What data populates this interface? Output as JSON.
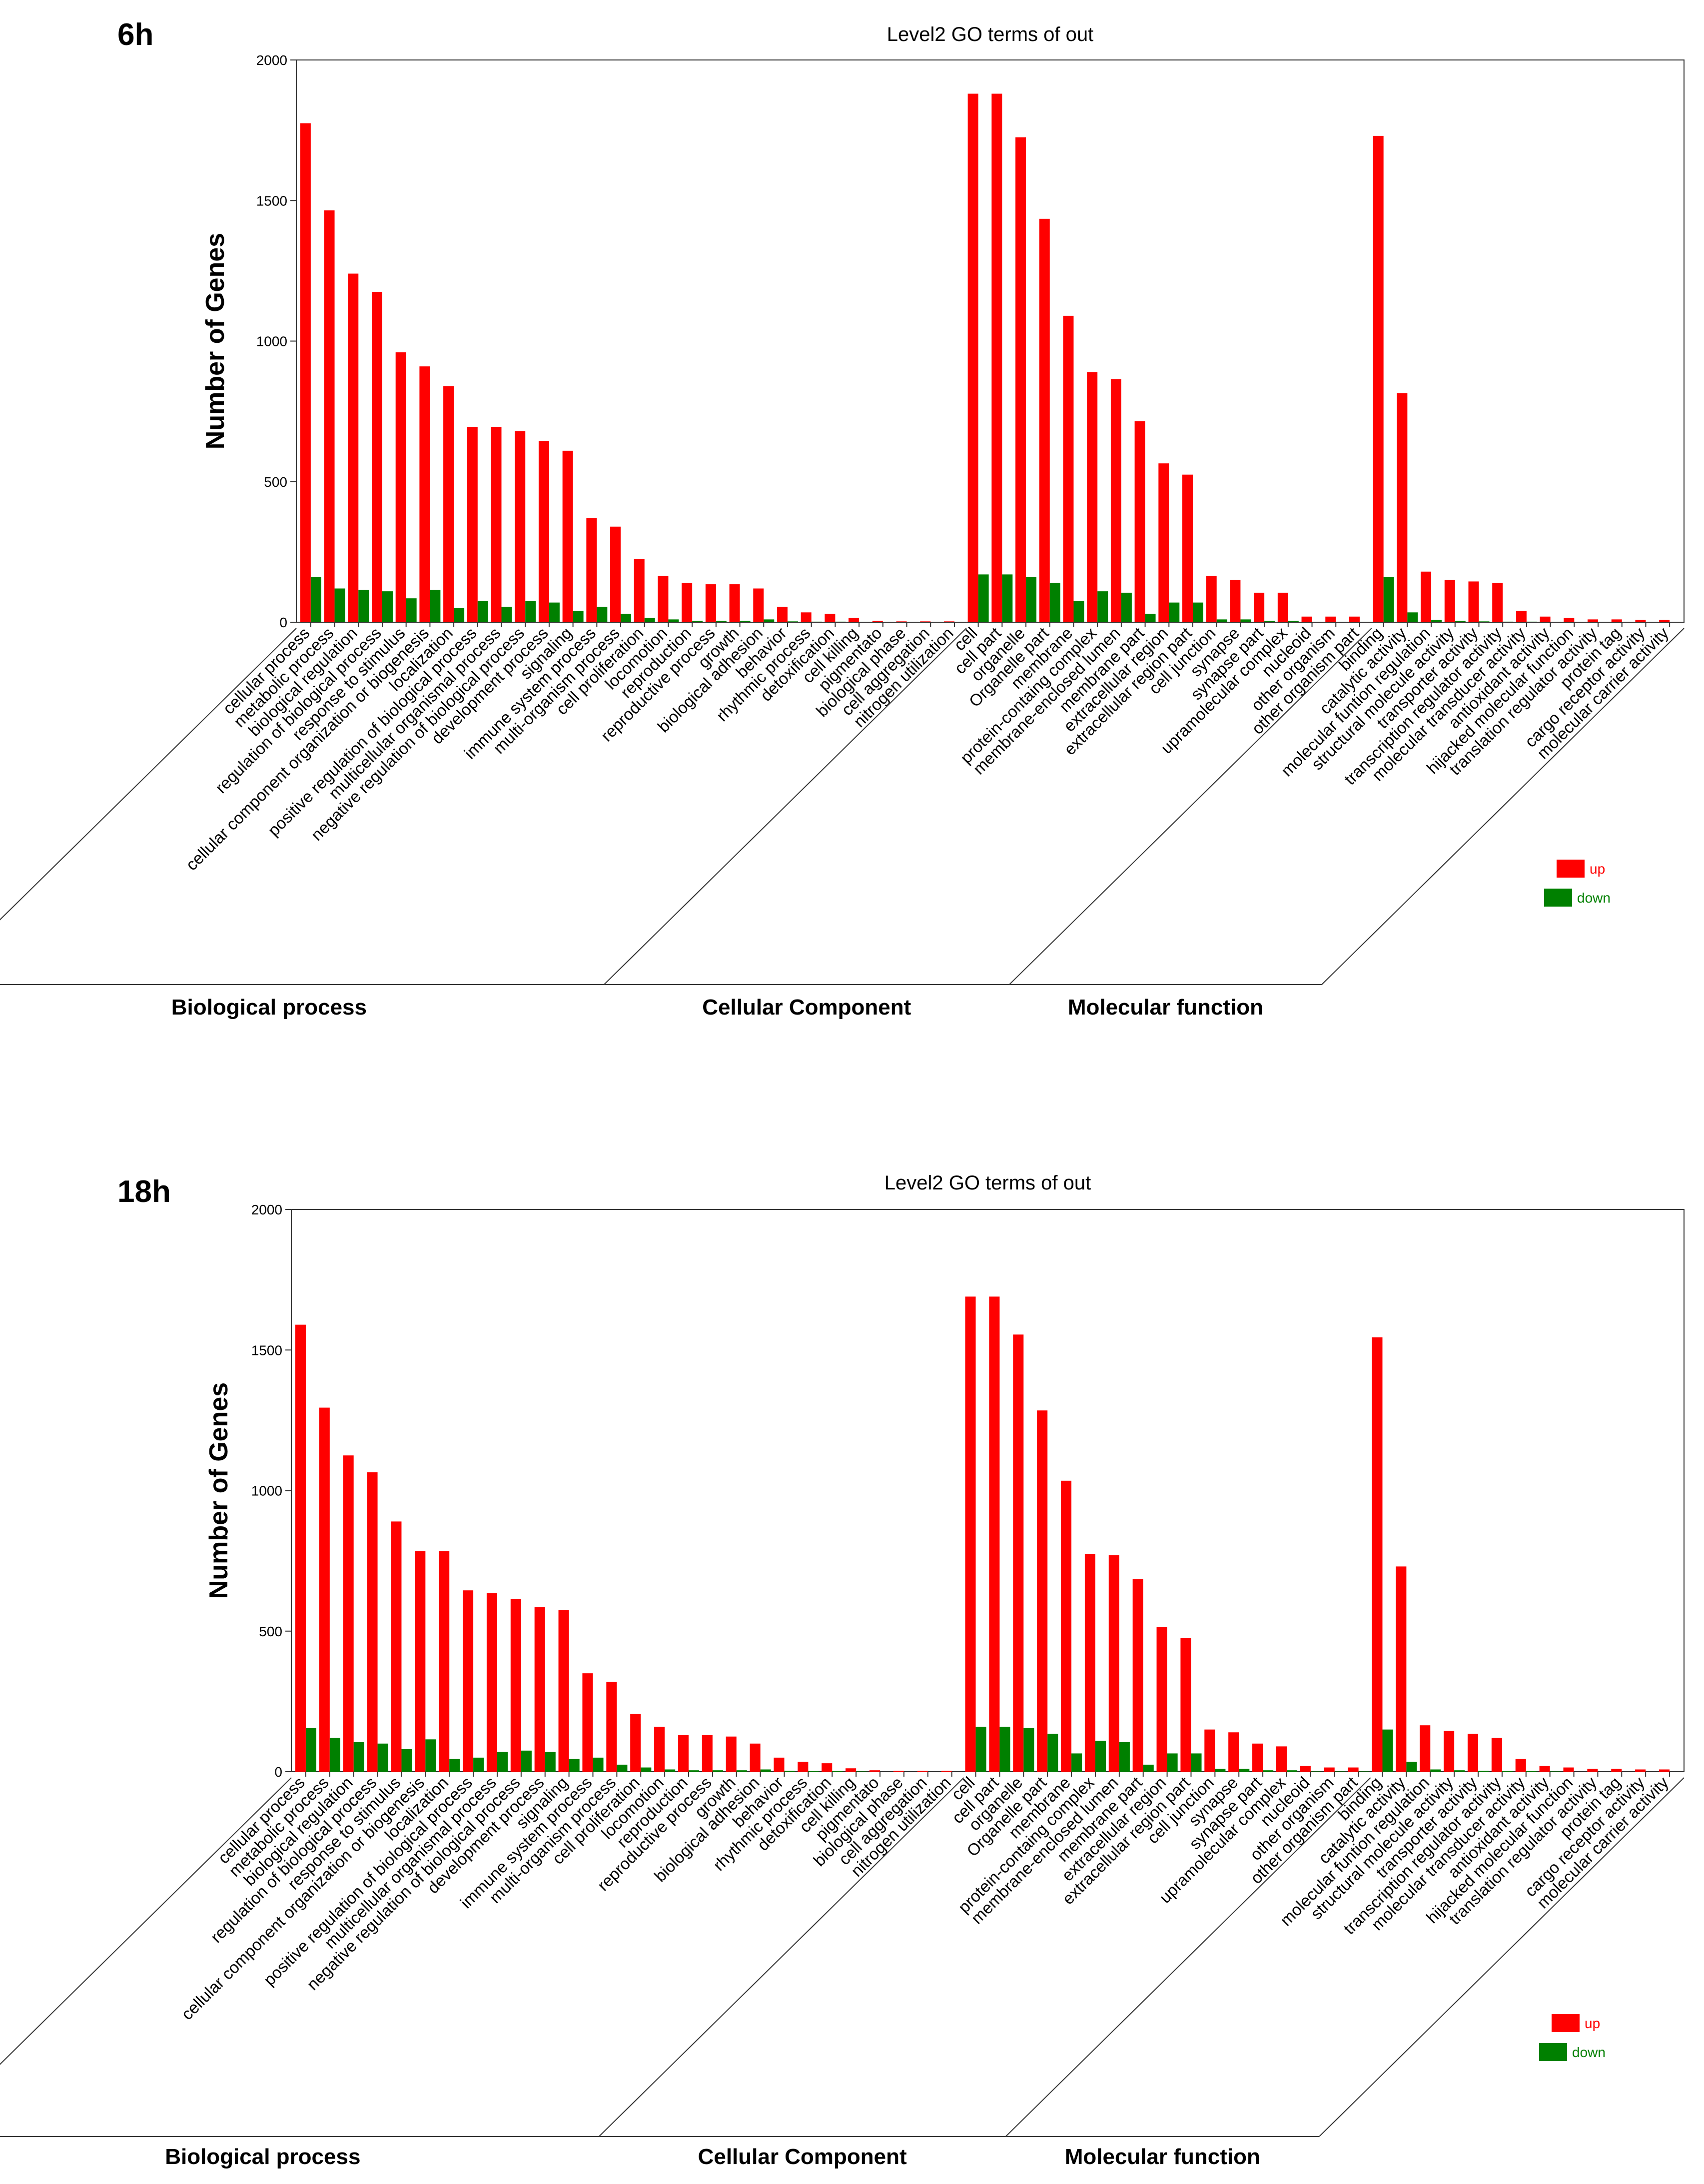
{
  "legend": {
    "up_label": "up",
    "down_label": "down"
  },
  "colors": {
    "up": "#ff0000",
    "down": "#008000",
    "axis": "#333333"
  },
  "chart_data": [
    {
      "type": "bar",
      "panel_label": "6h",
      "title": "Level2 GO terms of out",
      "ylabel": "Number of Genes",
      "xlabel": "",
      "ylim": [
        0,
        2000
      ],
      "yticks": [
        0,
        500,
        1000,
        1500,
        2000
      ],
      "categories": [
        "cellular process",
        "metabolic process",
        "biological regulation",
        "regulation of biological process",
        "response to stimulus",
        "cellular component organization or biogenesis",
        "localization",
        "positive regulation of biological process",
        "multicellular organismal process",
        "negative regulation of biological process",
        "development  process",
        "signaling",
        "immune system process",
        "multi-organism process",
        "cell proliferation",
        "locomotion",
        "reproduction",
        "reproductive process",
        "growth",
        "biological adhesion",
        "behavior",
        "rhythmic process",
        "detoxification",
        "cell killing",
        "pigmentato",
        "biological phase",
        "cell aggregation",
        "nitrogen utilization",
        "cell",
        "cell part",
        "organelle",
        "Organelle part",
        "membrane",
        "protein-containg complex",
        "membrane-enclosed lumen",
        "membrane part",
        "extracellular region",
        "extracellular region part",
        "cell junction",
        "synapse",
        "synapse part",
        "upramolecular complex",
        "nucleoid",
        "other organism",
        "other organism part",
        "binding",
        "catalytic activity",
        "molecular funtion regulation",
        "structural molecule activity",
        "transporter activity",
        "transcription regulator activity",
        "molecular transducer activity",
        "antioxidant activity",
        "hijacked molecular function",
        "translation regulator activity",
        "protein tag",
        "cargo receptor activity",
        "molecular carrier activity"
      ],
      "groups": [
        {
          "name": "Biological process",
          "count": 28
        },
        {
          "name": "Cellular Component",
          "count": 17
        },
        {
          "name": "Molecular function",
          "count": 13
        }
      ],
      "series": [
        {
          "name": "up",
          "values": [
            1775,
            1465,
            1240,
            1175,
            960,
            910,
            840,
            695,
            695,
            680,
            645,
            610,
            370,
            340,
            225,
            165,
            140,
            135,
            135,
            120,
            55,
            35,
            30,
            15,
            5,
            3,
            3,
            3,
            1880,
            1880,
            1725,
            1435,
            1090,
            890,
            865,
            715,
            565,
            525,
            165,
            150,
            105,
            105,
            20,
            20,
            20,
            1730,
            815,
            180,
            150,
            145,
            140,
            40,
            20,
            15,
            10,
            10,
            8,
            8
          ]
        },
        {
          "name": "down",
          "values": [
            160,
            120,
            115,
            110,
            85,
            115,
            50,
            75,
            55,
            75,
            70,
            40,
            55,
            30,
            15,
            10,
            5,
            5,
            5,
            10,
            3,
            2,
            2,
            1,
            0,
            0,
            0,
            0,
            170,
            170,
            160,
            140,
            75,
            110,
            105,
            30,
            70,
            70,
            10,
            10,
            5,
            5,
            1,
            1,
            1,
            160,
            35,
            8,
            5,
            3,
            2,
            2,
            1,
            0,
            0,
            0,
            0,
            0
          ]
        }
      ]
    },
    {
      "type": "bar",
      "panel_label": "18h",
      "title": "Level2 GO terms of out",
      "ylabel": "Number of Genes",
      "xlabel": "",
      "ylim": [
        0,
        2000
      ],
      "yticks": [
        0,
        500,
        1000,
        1500,
        2000
      ],
      "categories": [
        "cellular process",
        "metabolic process",
        "biological regulation",
        "regulation of biological process",
        "response to stimulus",
        "cellular component organization or biogenesis",
        "localization",
        "positive regulation of biological process",
        "multicellular organismal process",
        "negative regulation of biological process",
        "development  process",
        "signaling",
        "immune system process",
        "multi-organism process",
        "cell proliferation",
        "locomotion",
        "reproduction",
        "reproductive process",
        "growth",
        "biological adhesion",
        "behavior",
        "rhythmic process",
        "detoxification",
        "cell killing",
        "pigmentato",
        "biological phase",
        "cell aggregation",
        "nitrogen utilization",
        "cell",
        "cell part",
        "organelle",
        "Organelle part",
        "membrane",
        "protein-containg complex",
        "membrane-enclosed lumen",
        "membrane part",
        "extracellular region",
        "extracellular region part",
        "cell junction",
        "synapse",
        "synapse part",
        "upramolecular complex",
        "nucleoid",
        "other organism",
        "other organism part",
        "binding",
        "catalytic activity",
        "molecular funtion regulation",
        "structural molecule activity",
        "transporter activity",
        "transcription regulator activity",
        "molecular transducer activity",
        "antioxidant activity",
        "hijacked molecular function",
        "translation regulator activity",
        "protein tag",
        "cargo receptor activity",
        "molecular carrier activity"
      ],
      "groups": [
        {
          "name": "Biological process",
          "count": 28
        },
        {
          "name": "Cellular Component",
          "count": 17
        },
        {
          "name": "Molecular function",
          "count": 13
        }
      ],
      "series": [
        {
          "name": "up",
          "values": [
            1590,
            1295,
            1125,
            1065,
            890,
            785,
            785,
            645,
            635,
            615,
            585,
            575,
            350,
            320,
            205,
            160,
            130,
            130,
            125,
            100,
            50,
            35,
            30,
            12,
            5,
            3,
            3,
            3,
            1690,
            1690,
            1555,
            1285,
            1035,
            775,
            770,
            685,
            515,
            475,
            150,
            140,
            100,
            90,
            20,
            15,
            15,
            1545,
            730,
            165,
            145,
            135,
            120,
            45,
            20,
            15,
            10,
            10,
            8,
            8
          ]
        },
        {
          "name": "down",
          "values": [
            155,
            120,
            105,
            100,
            80,
            115,
            45,
            50,
            70,
            75,
            70,
            45,
            50,
            25,
            15,
            8,
            5,
            5,
            5,
            8,
            3,
            2,
            2,
            1,
            0,
            0,
            0,
            0,
            160,
            160,
            155,
            135,
            65,
            110,
            105,
            25,
            65,
            65,
            10,
            10,
            5,
            5,
            1,
            1,
            1,
            150,
            35,
            8,
            5,
            3,
            2,
            2,
            1,
            0,
            0,
            0,
            0,
            0
          ]
        }
      ]
    }
  ]
}
